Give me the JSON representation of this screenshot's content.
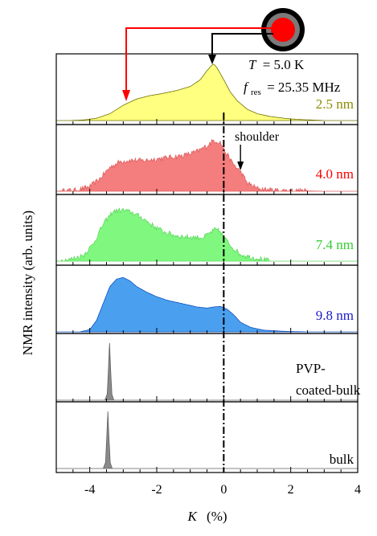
{
  "chart_data": {
    "type": "area",
    "title": "",
    "xlabel": "K",
    "xunit": "(%)",
    "ylabel": "NMR intensity (arb. units)",
    "xlim": [
      -5,
      4
    ],
    "xticks": [
      -4,
      -2,
      0,
      2,
      4
    ],
    "ref_line_x": 0,
    "conditions": {
      "T_symbol": "T",
      "T_value": "= 5.0 K",
      "f_symbol": "f",
      "f_sub": "res",
      "f_value": "= 25.35 MHz"
    },
    "annotations": [
      {
        "text": "shoulder",
        "target_panel": 1,
        "x": 0.5
      }
    ],
    "panels": [
      {
        "label": "2.5 nm",
        "color": "#ffff80",
        "edge": "#707000",
        "label_color": "#8c8c00",
        "noisy": false,
        "x": [
          -5.0,
          -4.6,
          -4.2,
          -3.8,
          -3.4,
          -3.0,
          -2.6,
          -2.2,
          -1.8,
          -1.4,
          -1.0,
          -0.7,
          -0.5,
          -0.35,
          -0.3,
          -0.2,
          0.0,
          0.2,
          0.4,
          0.7,
          1.0,
          1.4,
          1.8,
          2.2,
          2.6,
          3.0,
          3.5,
          4.0
        ],
        "y": [
          0.0,
          0.0,
          0.01,
          0.04,
          0.12,
          0.27,
          0.38,
          0.44,
          0.48,
          0.53,
          0.6,
          0.72,
          0.88,
          0.98,
          1.0,
          0.93,
          0.72,
          0.5,
          0.35,
          0.2,
          0.12,
          0.07,
          0.04,
          0.02,
          0.01,
          0.0,
          0.0,
          0.0
        ]
      },
      {
        "label": "4.0 nm",
        "color": "#f47d7d",
        "edge": "#e06060",
        "label_color": "#ff0000",
        "noisy": true,
        "x": [
          -5.0,
          -4.4,
          -4.0,
          -3.7,
          -3.4,
          -3.1,
          -2.8,
          -2.4,
          -2.0,
          -1.6,
          -1.2,
          -0.8,
          -0.5,
          -0.3,
          -0.1,
          0.0,
          0.2,
          0.4,
          0.5,
          0.7,
          1.0,
          1.4,
          2.0,
          3.0,
          4.0
        ],
        "y": [
          0.0,
          0.02,
          0.08,
          0.22,
          0.42,
          0.52,
          0.55,
          0.54,
          0.57,
          0.6,
          0.63,
          0.7,
          0.8,
          0.9,
          0.86,
          0.74,
          0.55,
          0.4,
          0.35,
          0.15,
          0.05,
          0.02,
          0.01,
          0.0,
          0.0
        ]
      },
      {
        "label": "7.4 nm",
        "color": "#80f880",
        "edge": "#60d860",
        "label_color": "#33cc33",
        "noisy": true,
        "x": [
          -5.0,
          -4.6,
          -4.2,
          -3.9,
          -3.6,
          -3.3,
          -3.0,
          -2.7,
          -2.4,
          -2.1,
          -1.8,
          -1.5,
          -1.2,
          -0.9,
          -0.6,
          -0.4,
          -0.25,
          -0.1,
          0.1,
          0.3,
          0.5,
          0.8,
          1.1,
          1.4
        ],
        "y": [
          0.0,
          0.03,
          0.1,
          0.3,
          0.65,
          0.88,
          0.9,
          0.85,
          0.75,
          0.62,
          0.52,
          0.46,
          0.43,
          0.42,
          0.42,
          0.5,
          0.56,
          0.52,
          0.35,
          0.22,
          0.12,
          0.07,
          0.04,
          0.0
        ]
      },
      {
        "label": "9.8 nm",
        "color": "#4aa0ee",
        "edge": "#1050c0",
        "label_color": "#1b1bcc",
        "noisy": false,
        "x": [
          -5.0,
          -4.3,
          -4.0,
          -3.8,
          -3.6,
          -3.4,
          -3.2,
          -3.0,
          -2.8,
          -2.6,
          -2.3,
          -2.0,
          -1.7,
          -1.4,
          -1.1,
          -0.8,
          -0.5,
          -0.3,
          -0.1,
          0.1,
          0.3,
          0.5,
          0.8,
          1.2,
          1.8,
          2.5,
          4.0
        ],
        "y": [
          0.0,
          0.0,
          0.04,
          0.2,
          0.5,
          0.8,
          0.93,
          0.96,
          0.9,
          0.8,
          0.7,
          0.62,
          0.56,
          0.52,
          0.48,
          0.44,
          0.42,
          0.44,
          0.45,
          0.4,
          0.3,
          0.17,
          0.08,
          0.03,
          0.01,
          0.0,
          0.0
        ]
      },
      {
        "label": "PVP-\ncoated-bulk",
        "color": "#8a8a8a",
        "edge": "#606060",
        "label_color": "#000000",
        "noisy": false,
        "x": [
          -5.0,
          -3.55,
          -3.48,
          -3.44,
          -3.41,
          -3.38,
          -3.34,
          -3.28,
          4.0
        ],
        "y": [
          0.0,
          0.0,
          0.1,
          0.55,
          0.95,
          0.55,
          0.1,
          0.0,
          0.0
        ]
      },
      {
        "label": "bulk",
        "color": "#8a8a8a",
        "edge": "#606060",
        "label_color": "#000000",
        "noisy": false,
        "x": [
          -5.0,
          -3.6,
          -3.53,
          -3.49,
          -3.46,
          -3.43,
          -3.39,
          -3.33,
          4.0
        ],
        "y": [
          0.0,
          0.0,
          0.1,
          0.55,
          0.95,
          0.55,
          0.1,
          0.0,
          0.0
        ]
      }
    ]
  }
}
